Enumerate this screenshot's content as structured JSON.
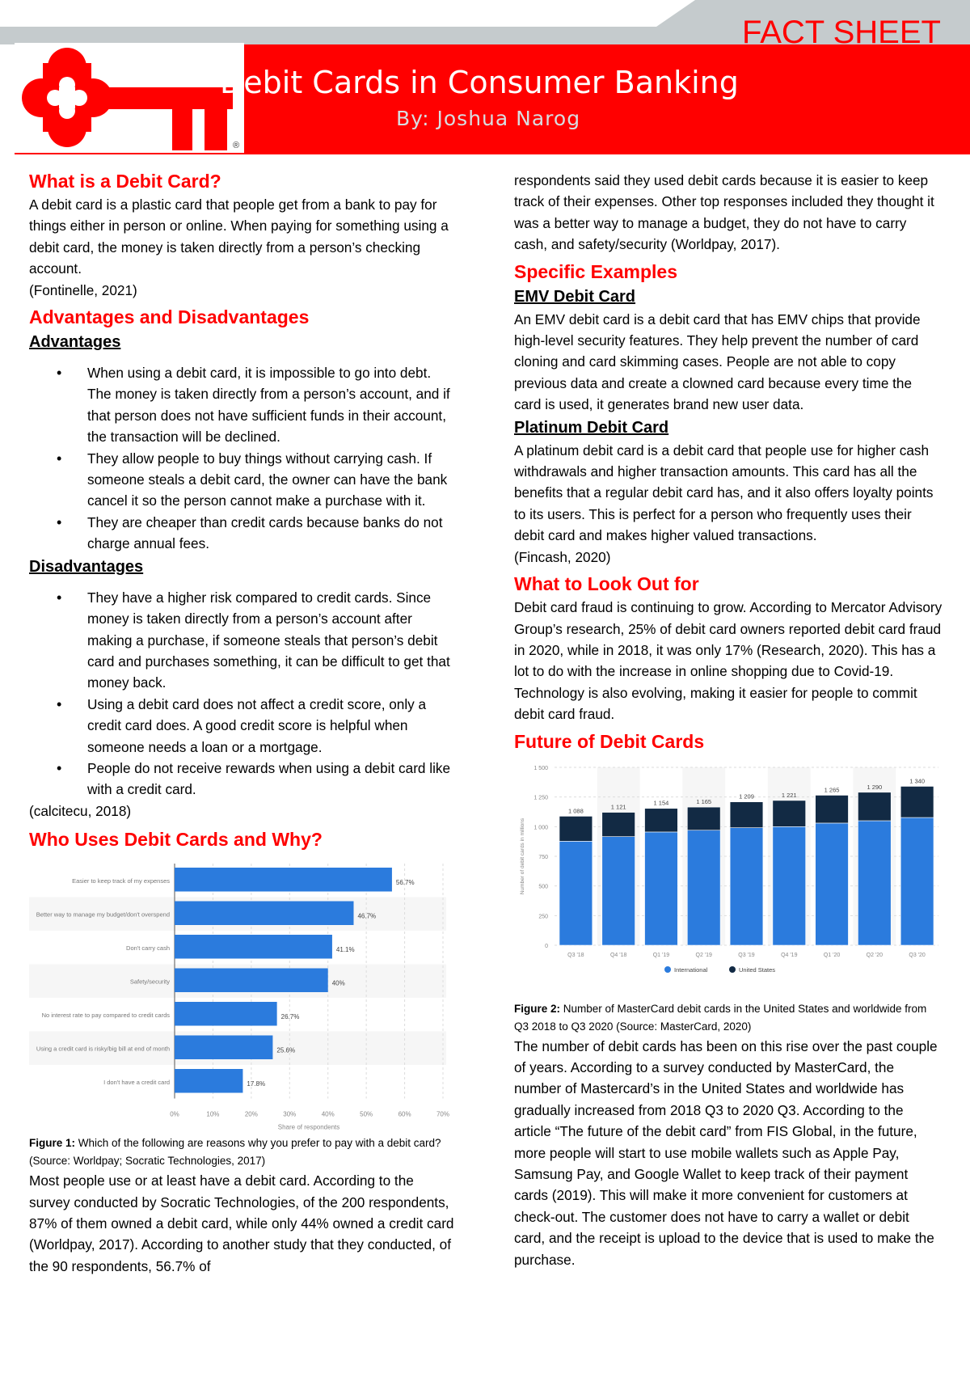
{
  "header": {
    "label": "FACT SHEET",
    "title": "Debit Cards in Consumer Banking",
    "byline": "By: Joshua Narog",
    "logo": "key-logo",
    "brand_color": "#ff0000"
  },
  "s1": {
    "heading": "What is a Debit Card?",
    "body": "A debit card is a plastic card that people get from a bank to pay for things either in person or online. When paying for something using a debit card, the money is taken directly from a person’s checking account.",
    "cite": "(Fontinelle, 2021)"
  },
  "s2": {
    "heading": "Advantages and Disadvantages",
    "adv_heading": "Advantages",
    "adv": [
      "When using a debit card, it is impossible to go into debt. The money is taken directly from a person’s account, and if that person does not have sufficient funds in their account, the transaction will be declined.",
      "They allow people to buy things without carrying cash. If someone steals a debit card, the owner can have the bank cancel it so the person cannot make a purchase with it.",
      "They are cheaper than credit cards because banks do not charge annual fees."
    ],
    "dis_heading": "Disadvantages",
    "dis": [
      "They have a higher risk compared to credit cards. Since money is taken directly from a person’s account after making a purchase, if someone steals that person’s debit card and purchases something, it can be difficult to get that money back.",
      "Using a debit card does not affect a credit score, only a credit card does. A good credit score is helpful when someone needs a loan or a mortgage.",
      "People do not receive rewards when using a debit card like with a credit card."
    ],
    "cite": "(calcitecu, 2018)"
  },
  "s3": {
    "heading": "Who Uses Debit Cards and Why?",
    "caption_bold": "Figure 1:",
    "caption": " Which of the following are reasons why you prefer to pay with a debit card? (Source: Worldpay; Socratic Technologies, 2017)",
    "body": "Most people use or at least have a debit card. According to the survey conducted by Socratic Technologies, of the 200 respondents, 87% of them owned a debit card, while only 44% owned a credit card (Worldpay, 2017). According to another study that they conducted, of the 90 respondents, 56.7% of",
    "body2": "respondents said they used debit cards because it is easier to keep track of their expenses. Other top responses included they thought it was a better way to manage a budget, they do not have to carry cash, and safety/security (Worldpay, 2017)."
  },
  "s4": {
    "heading": "Specific Examples",
    "emv_heading": "EMV Debit Card",
    "emv": "An EMV debit card is a debit card that has EMV chips that provide high-level security features. They help prevent the number of card cloning and card skimming cases. People are not able to copy previous data and create a clowned card because every time the card is used, it generates brand new user data.",
    "plat_heading": "Platinum Debit Card",
    "plat": "A platinum debit card is a debit card that people use for higher cash withdrawals and higher transaction amounts. This card has all the benefits that a regular debit card has, and it also offers loyalty points to its users. This is perfect for a person who frequently uses their debit card and makes higher valued transactions.",
    "cite": "(Fincash, 2020)"
  },
  "s5": {
    "heading": "What to Look Out for",
    "body": "Debit card fraud is continuing to grow. According to Mercator Advisory Group’s research, 25% of debit card owners reported debit card fraud in 2020, while in 2018, it was only 17% (Research, 2020). This has a lot to do with the increase in online shopping due to Covid-19. Technology is also evolving, making it easier for people to commit debit card fraud."
  },
  "s6": {
    "heading": "Future of Debit Cards",
    "caption_bold": "Figure 2:",
    "caption": " Number of MasterCard debit cards in the United States and worldwide from Q3 2018 to Q3 2020 (Source: MasterCard, 2020)",
    "body": "The number of debit cards has been on this rise over the past couple of years. According to a survey conducted by MasterCard, the number of Mastercard’s in the United States and worldwide has gradually increased from 2018 Q3 to 2020 Q3. According to the article “The future of the debit card” from FIS Global, in the future, more people will start to use mobile wallets such as Apple Pay, Samsung Pay, and Google Wallet to keep track of their payment cards (2019). This will make it more convenient for customers at check-out. The customer does not have to carry a wallet or debit card, and the receipt is upload to the device that is used to make the purchase."
  },
  "chart_data": [
    {
      "type": "bar",
      "orientation": "horizontal",
      "categories": [
        "Easier to keep track of my expenses",
        "Better way to manage my budget/don't overspend",
        "Don't carry cash",
        "Safety/security",
        "No interest rate to pay compared to credit cards",
        "Using a credit card is risky/big bill at end of month",
        "I don't have a credit card"
      ],
      "values": [
        56.7,
        46.7,
        41.1,
        40,
        26.7,
        25.6,
        17.8
      ],
      "labels": [
        "56.7%",
        "46.7%",
        "41.1%",
        "40%",
        "26.7%",
        "25.6%",
        "17.8%"
      ],
      "xlabel": "Share of respondents",
      "xlim": [
        0,
        70
      ],
      "xticks": [
        "0%",
        "10%",
        "20%",
        "30%",
        "40%",
        "50%",
        "60%",
        "70%"
      ],
      "grid": true,
      "color": "#2b7bdd"
    },
    {
      "type": "bar",
      "stacked": true,
      "categories": [
        "Q3 '18",
        "Q4 '18",
        "Q1 '19",
        "Q2 '19",
        "Q3 '19",
        "Q4 '19",
        "Q1 '20",
        "Q2 '20",
        "Q3 '20"
      ],
      "series": [
        {
          "name": "International",
          "values": [
            877,
            916,
            955,
            970,
            991,
            1000,
            1030,
            1050,
            1077
          ],
          "color": "#2b7bdd"
        },
        {
          "name": "United States",
          "values": [
            211,
            205,
            199,
            195,
            218,
            221,
            235,
            240,
            263
          ],
          "color": "#122a44"
        }
      ],
      "totals": [
        "1 088",
        "1 121",
        "1 154",
        "1 165",
        "1 209",
        "1 221",
        "1 265",
        "1 290",
        "1 340"
      ],
      "ylabel": "Number of debit cards in millions",
      "ylim": [
        0,
        1500
      ],
      "yticks": [
        "0",
        "250",
        "500",
        "750",
        "1 000",
        "1 250",
        "1 500"
      ],
      "legend": "bottom",
      "grid": true
    }
  ]
}
